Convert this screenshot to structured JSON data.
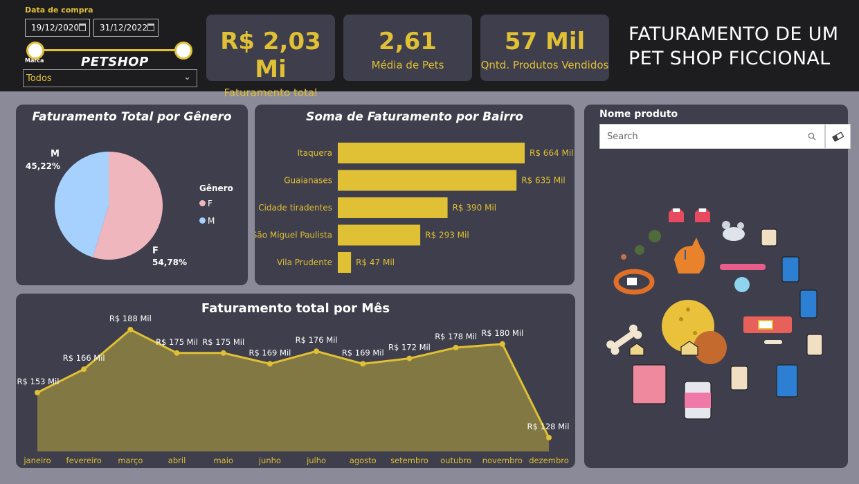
{
  "filters": {
    "date_label": "Data de compra",
    "date_start": "19/12/2020",
    "date_end": "31/12/2022",
    "marca_label": "Marca",
    "brand_logo": "PETSHOP",
    "marca_selected": "Todos"
  },
  "kpis": [
    {
      "value": "R$ 2,03 Mi",
      "label": "Faturamento total"
    },
    {
      "value": "2,61",
      "label": "Média de Pets"
    },
    {
      "value": "57 Mil",
      "label": "Qntd. Produtos Vendidos"
    }
  ],
  "header": {
    "title_line1": "FATURAMENTO DE UM",
    "title_line2": "PET SHOP FICCIONAL"
  },
  "colors": {
    "accent": "#e0c034",
    "panel": "#3e3e4c",
    "background": "#8a8a99",
    "topbar": "#1d1d1f",
    "pie_f": "#f0b6be",
    "pie_m": "#a6d1ff",
    "area_fill": "#827843"
  },
  "gender_chart": {
    "title": "Faturamento Total por Gênero",
    "legend_title": "Gênero",
    "slices": [
      {
        "label": "F",
        "value_label": "54,78%",
        "value": 54.78,
        "color": "#f0b6be"
      },
      {
        "label": "M",
        "value_label": "45,22%",
        "value": 45.22,
        "color": "#a6d1ff"
      }
    ]
  },
  "bairro_chart": {
    "title": "Soma de Faturamento por Bairro",
    "bars": [
      {
        "label": "Itaquera",
        "value": 664,
        "value_label": "R$ 664 Mil"
      },
      {
        "label": "Guaianases",
        "value": 635,
        "value_label": "R$ 635 Mil"
      },
      {
        "label": "Cidade tiradentes",
        "value": 390,
        "value_label": "R$ 390 Mil"
      },
      {
        "label": "São Miguel Paulista",
        "value": 293,
        "value_label": "R$ 293 Mil"
      },
      {
        "label": "Vila Prudente",
        "value": 47,
        "value_label": "R$ 47 Mil"
      }
    ]
  },
  "month_chart": {
    "title": "Faturamento total por Mês",
    "points": [
      {
        "month": "janeiro",
        "value": 153,
        "value_label": "R$ 153 Mil"
      },
      {
        "month": "fevereiro",
        "value": 166,
        "value_label": "R$ 166 Mil"
      },
      {
        "month": "março",
        "value": 188,
        "value_label": "R$ 188 Mil"
      },
      {
        "month": "abril",
        "value": 175,
        "value_label": "R$ 175 Mil"
      },
      {
        "month": "maio",
        "value": 175,
        "value_label": "R$ 175 Mil"
      },
      {
        "month": "junho",
        "value": 169,
        "value_label": "R$ 169 Mil"
      },
      {
        "month": "julho",
        "value": 176,
        "value_label": "R$ 176 Mil"
      },
      {
        "month": "agosto",
        "value": 169,
        "value_label": "R$ 169 Mil"
      },
      {
        "month": "setembro",
        "value": 172,
        "value_label": "R$ 172 Mil"
      },
      {
        "month": "outubro",
        "value": 178,
        "value_label": "R$ 178 Mil"
      },
      {
        "month": "novembro",
        "value": 180,
        "value_label": "R$ 180 Mil"
      },
      {
        "month": "dezembro",
        "value": 128,
        "value_label": "R$ 128 Mil"
      }
    ]
  },
  "product_panel": {
    "label": "Nome produto",
    "search_placeholder": "Search",
    "icons": [
      "pet-clothes-icon",
      "mouse-toy-icon",
      "dog-food-bag-icon",
      "dog-icon",
      "collar-icon",
      "ball-toy-icon",
      "bone-icon",
      "treat-icon",
      "cat-food-can-icon"
    ]
  },
  "chart_data": [
    {
      "type": "pie",
      "title": "Faturamento Total por Gênero",
      "legend_title": "Gênero",
      "labels": [
        "F",
        "M"
      ],
      "values": [
        54.78,
        45.22
      ]
    },
    {
      "type": "bar",
      "title": "Soma de Faturamento por Bairro",
      "categories": [
        "Itaquera",
        "Guaianases",
        "Cidade tiradentes",
        "São Miguel Paulista",
        "Vila Prudente"
      ],
      "values": [
        664,
        635,
        390,
        293,
        47
      ]
    },
    {
      "type": "area",
      "title": "Faturamento total por Mês",
      "categories": [
        "janeiro",
        "fevereiro",
        "março",
        "abril",
        "maio",
        "junho",
        "julho",
        "agosto",
        "setembro",
        "outubro",
        "novembro",
        "dezembro"
      ],
      "values": [
        153,
        166,
        188,
        175,
        175,
        169,
        176,
        169,
        172,
        178,
        180,
        128
      ]
    }
  ]
}
